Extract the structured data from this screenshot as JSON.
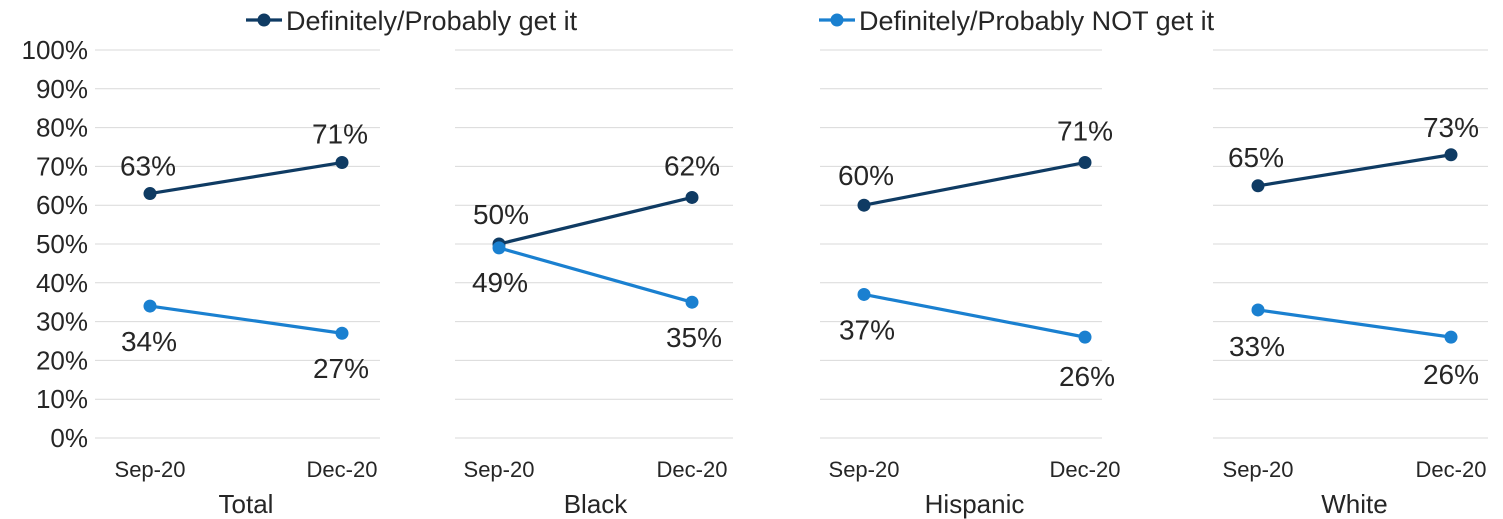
{
  "chart_data": {
    "type": "line",
    "ylim": [
      0,
      100
    ],
    "yticks": [
      "0%",
      "10%",
      "20%",
      "30%",
      "40%",
      "50%",
      "60%",
      "70%",
      "80%",
      "90%",
      "100%"
    ],
    "x": [
      "Sep-20",
      "Dec-20"
    ],
    "grid": true,
    "legend": "top",
    "colors": {
      "get": "#0f3b63",
      "not": "#1a80d0",
      "grid": "#d9d9d9"
    },
    "series_names": [
      "Definitely/Probably get it",
      "Definitely/Probably NOT get it"
    ],
    "groups": [
      {
        "name": "Total",
        "get": [
          63,
          71
        ],
        "not": [
          34,
          27
        ],
        "get_labels": [
          "63%",
          "71%"
        ],
        "not_labels": [
          "34%",
          "27%"
        ]
      },
      {
        "name": "Black",
        "get": [
          50,
          62
        ],
        "not": [
          49,
          35
        ],
        "get_labels": [
          "50%",
          "62%"
        ],
        "not_labels": [
          "49%",
          "35%"
        ]
      },
      {
        "name": "Hispanic",
        "get": [
          60,
          71
        ],
        "not": [
          37,
          26
        ],
        "get_labels": [
          "60%",
          "71%"
        ],
        "not_labels": [
          "37%",
          "26%"
        ]
      },
      {
        "name": "White",
        "get": [
          65,
          73
        ],
        "not": [
          33,
          26
        ],
        "get_labels": [
          "65%",
          "73%"
        ],
        "not_labels": [
          "33%",
          "26%"
        ]
      }
    ]
  }
}
